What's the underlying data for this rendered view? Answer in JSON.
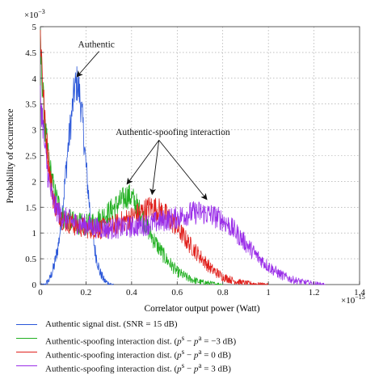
{
  "chart_data": {
    "type": "line",
    "xlabel": "Correlator output power (Watt)",
    "ylabel": "Probability of occurrence",
    "x_exponent": "×10",
    "x_exponent_power": "−15",
    "y_exponent": "×10",
    "y_exponent_power": "−3",
    "xlim": [
      0,
      1.4
    ],
    "ylim": [
      0,
      5
    ],
    "x_ticks": [
      "0",
      "0.2",
      "0.4",
      "0.6",
      "0.8",
      "1",
      "1.2",
      "1.4"
    ],
    "y_ticks": [
      "0",
      "0.5",
      "1",
      "1.5",
      "2",
      "2.5",
      "3",
      "3.5",
      "4",
      "4.5",
      "5"
    ],
    "grid": true,
    "legend_position": "bottom",
    "series": [
      {
        "name": "Authentic signal dist. (SNR = 15 dB)",
        "color": "#2855d8",
        "x": [
          0.0,
          0.02,
          0.04,
          0.06,
          0.08,
          0.1,
          0.12,
          0.14,
          0.15,
          0.16,
          0.17,
          0.18,
          0.19,
          0.2,
          0.22,
          0.24,
          0.26,
          0.28,
          0.3,
          0.32
        ],
        "y": [
          0.0,
          0.0,
          0.1,
          0.35,
          0.8,
          1.6,
          2.6,
          3.4,
          3.8,
          3.9,
          3.75,
          3.4,
          2.9,
          2.3,
          1.3,
          0.65,
          0.25,
          0.08,
          0.02,
          0.0
        ]
      },
      {
        "name": "Authentic-spoofing interaction dist. (p^s − p^a = −3 dB)",
        "legend_main": "Authentic-spoofing interaction dist. (",
        "legend_math": "p",
        "legend_sup1": "s",
        "legend_mid": " − ",
        "legend_math2": "p",
        "legend_sup2": "a",
        "legend_tail": " = −3 dB)",
        "color": "#22b022",
        "x": [
          0.0,
          0.01,
          0.02,
          0.04,
          0.06,
          0.08,
          0.1,
          0.15,
          0.2,
          0.25,
          0.3,
          0.35,
          0.38,
          0.4,
          0.42,
          0.45,
          0.48,
          0.5,
          0.55,
          0.6,
          0.65,
          0.7,
          0.75,
          0.8
        ],
        "y": [
          4.6,
          3.8,
          3.0,
          2.3,
          1.8,
          1.55,
          1.3,
          1.2,
          1.15,
          1.25,
          1.4,
          1.6,
          1.72,
          1.7,
          1.55,
          1.3,
          1.0,
          0.85,
          0.5,
          0.25,
          0.12,
          0.05,
          0.02,
          0.0
        ]
      },
      {
        "name": "Authentic-spoofing interaction dist. (p^s − p^a = 0 dB)",
        "legend_main": "Authentic-spoofing interaction dist. (",
        "legend_math": "p",
        "legend_sup1": "s",
        "legend_mid": " − ",
        "legend_math2": "p",
        "legend_sup2": "a",
        "legend_tail": " = 0 dB)",
        "color": "#e0201c",
        "x": [
          0.0,
          0.01,
          0.02,
          0.04,
          0.06,
          0.08,
          0.1,
          0.15,
          0.2,
          0.25,
          0.3,
          0.35,
          0.4,
          0.45,
          0.48,
          0.5,
          0.52,
          0.55,
          0.6,
          0.65,
          0.7,
          0.75,
          0.8,
          0.85,
          0.9,
          0.95,
          1.0
        ],
        "y": [
          4.9,
          4.0,
          3.1,
          2.2,
          1.6,
          1.4,
          1.25,
          1.15,
          1.1,
          1.08,
          1.1,
          1.2,
          1.3,
          1.42,
          1.5,
          1.48,
          1.45,
          1.35,
          1.1,
          0.8,
          0.55,
          0.3,
          0.15,
          0.07,
          0.03,
          0.01,
          0.0
        ]
      },
      {
        "name": "Authentic-spoofing interaction dist. (p^s − p^a = 3 dB)",
        "legend_main": "Authentic-spoofing interaction dist. (",
        "legend_math": "p",
        "legend_sup1": "s",
        "legend_mid": " − ",
        "legend_math2": "p",
        "legend_sup2": "a",
        "legend_tail": " = 3 dB)",
        "color": "#9a2ee8",
        "x": [
          0.0,
          0.01,
          0.02,
          0.04,
          0.06,
          0.08,
          0.1,
          0.15,
          0.2,
          0.25,
          0.3,
          0.35,
          0.4,
          0.45,
          0.5,
          0.55,
          0.6,
          0.65,
          0.7,
          0.75,
          0.8,
          0.85,
          0.9,
          0.95,
          1.0,
          1.05,
          1.1,
          1.15,
          1.2,
          1.25
        ],
        "y": [
          3.6,
          3.2,
          2.6,
          1.9,
          1.55,
          1.4,
          1.3,
          1.2,
          1.15,
          1.1,
          1.08,
          1.1,
          1.12,
          1.15,
          1.2,
          1.25,
          1.3,
          1.38,
          1.4,
          1.35,
          1.25,
          1.05,
          0.8,
          0.55,
          0.35,
          0.2,
          0.1,
          0.05,
          0.02,
          0.0
        ]
      }
    ],
    "annotations": [
      {
        "text": "Authentic",
        "text_at": [
          0.165,
          4.6
        ],
        "arrows_to": [
          [
            0.16,
            4.03
          ]
        ]
      },
      {
        "text": "Authentic-spoofing interaction",
        "text_at": [
          0.33,
          2.9
        ],
        "arrows_to": [
          [
            0.38,
            1.95
          ],
          [
            0.49,
            1.75
          ],
          [
            0.73,
            1.65
          ]
        ],
        "arrow_origin": [
          0.52,
          2.8
        ]
      }
    ]
  }
}
